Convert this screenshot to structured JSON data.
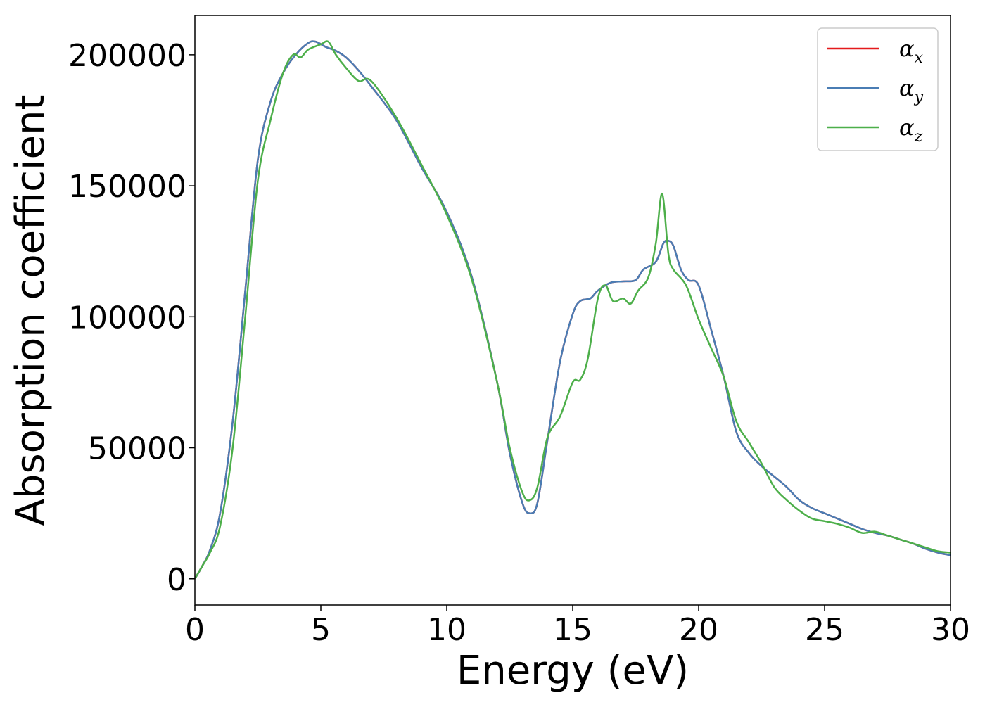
{
  "chart_data": {
    "type": "line",
    "title": "",
    "xlabel": "Energy (eV)",
    "ylabel": "Absorption coefficient",
    "xlim": [
      0,
      30
    ],
    "ylim": [
      -10000,
      215000
    ],
    "xticks": [
      0,
      5,
      10,
      15,
      20,
      25,
      30
    ],
    "xtick_labels": [
      "0",
      "5",
      "10",
      "15",
      "20",
      "25",
      "30"
    ],
    "yticks": [
      0,
      50000,
      100000,
      150000,
      200000
    ],
    "ytick_labels": [
      "0",
      "50000",
      "100000",
      "150000",
      "200000"
    ],
    "grid": false,
    "legend_position": "top-right",
    "series": [
      {
        "name": "α_x",
        "label_base": "α",
        "label_sub": "x",
        "color": "#e41a1c",
        "x": [
          0,
          0.3,
          0.6,
          1.0,
          1.5,
          2.0,
          2.5,
          3.0,
          3.5,
          4.0,
          4.5,
          4.8,
          5.2,
          5.6,
          6.0,
          6.5,
          7.0,
          8.0,
          9.0,
          10.0,
          11.0,
          12.0,
          12.5,
          13.0,
          13.3,
          13.6,
          14.0,
          14.5,
          15.0,
          15.3,
          15.7,
          16.0,
          16.5,
          17.0,
          17.5,
          17.8,
          18.3,
          18.6,
          18.8,
          19.0,
          19.3,
          19.6,
          20.0,
          20.5,
          21.0,
          21.5,
          22.0,
          22.5,
          23.0,
          23.5,
          24.0,
          24.5,
          25.0,
          25.5,
          26.0,
          26.5,
          27.0,
          27.5,
          28.0,
          28.5,
          29.0,
          29.5,
          30.0
        ],
        "values": [
          0,
          5000,
          11000,
          25000,
          60000,
          110000,
          160000,
          182000,
          193000,
          200000,
          204500,
          205000,
          203000,
          201500,
          199000,
          194000,
          188000,
          175000,
          157000,
          140000,
          115000,
          75000,
          48000,
          29000,
          25000,
          29000,
          53000,
          83000,
          101000,
          106000,
          107000,
          110000,
          113000,
          113500,
          114000,
          118000,
          121000,
          128000,
          129000,
          127000,
          118000,
          114000,
          112000,
          95000,
          77000,
          56000,
          48000,
          43000,
          39000,
          35000,
          30000,
          27000,
          25000,
          23000,
          21000,
          19000,
          17500,
          16500,
          15000,
          13500,
          11500,
          10000,
          9000
        ]
      },
      {
        "name": "α_y",
        "label_base": "α",
        "label_sub": "y",
        "color": "#4a7db4",
        "x": [
          0,
          0.3,
          0.6,
          1.0,
          1.5,
          2.0,
          2.5,
          3.0,
          3.5,
          4.0,
          4.5,
          4.8,
          5.2,
          5.6,
          6.0,
          6.5,
          7.0,
          8.0,
          9.0,
          10.0,
          11.0,
          12.0,
          12.5,
          13.0,
          13.3,
          13.6,
          14.0,
          14.5,
          15.0,
          15.3,
          15.7,
          16.0,
          16.5,
          17.0,
          17.5,
          17.8,
          18.3,
          18.6,
          18.8,
          19.0,
          19.3,
          19.6,
          20.0,
          20.5,
          21.0,
          21.5,
          22.0,
          22.5,
          23.0,
          23.5,
          24.0,
          24.5,
          25.0,
          25.5,
          26.0,
          26.5,
          27.0,
          27.5,
          28.0,
          28.5,
          29.0,
          29.5,
          30.0
        ],
        "values": [
          0,
          5000,
          11000,
          25000,
          60000,
          110000,
          160000,
          182000,
          193000,
          200000,
          204500,
          205000,
          203000,
          201500,
          199000,
          194000,
          188000,
          175000,
          157000,
          140000,
          115000,
          75000,
          48000,
          29000,
          25000,
          29000,
          53000,
          83000,
          101000,
          106000,
          107000,
          110000,
          113000,
          113500,
          114000,
          118000,
          121000,
          128000,
          129000,
          127000,
          118000,
          114000,
          112000,
          95000,
          77000,
          56000,
          48000,
          43000,
          39000,
          35000,
          30000,
          27000,
          25000,
          23000,
          21000,
          19000,
          17500,
          16500,
          15000,
          13500,
          11500,
          10000,
          9000
        ]
      },
      {
        "name": "α_z",
        "label_base": "α",
        "label_sub": "z",
        "color": "#4daf4a",
        "x": [
          0,
          0.3,
          0.6,
          1.0,
          1.5,
          2.0,
          2.5,
          3.0,
          3.5,
          3.9,
          4.2,
          4.5,
          5.0,
          5.3,
          5.6,
          6.0,
          6.5,
          7.0,
          8.0,
          9.0,
          10.0,
          11.0,
          12.0,
          12.5,
          13.0,
          13.3,
          13.6,
          14.0,
          14.5,
          15.0,
          15.3,
          15.6,
          16.0,
          16.3,
          16.6,
          17.0,
          17.3,
          17.6,
          18.0,
          18.3,
          18.55,
          18.8,
          19.0,
          19.5,
          20.0,
          20.5,
          21.0,
          21.5,
          22.0,
          22.5,
          23.0,
          23.5,
          24.0,
          24.5,
          25.0,
          25.5,
          26.0,
          26.5,
          27.0,
          27.5,
          28.0,
          28.5,
          29.0,
          29.5,
          30.0
        ],
        "values": [
          0,
          5000,
          10000,
          20000,
          50000,
          100000,
          152000,
          175000,
          193000,
          200000,
          199000,
          202000,
          204000,
          205000,
          200000,
          195000,
          190000,
          190000,
          176000,
          158000,
          139000,
          114000,
          75000,
          50000,
          33000,
          30000,
          35000,
          54000,
          62000,
          75000,
          76000,
          84000,
          107000,
          112000,
          106000,
          107000,
          105000,
          110000,
          115000,
          128000,
          147000,
          124000,
          118000,
          112000,
          99000,
          88000,
          77000,
          60000,
          52000,
          44000,
          35000,
          30000,
          26000,
          23000,
          22000,
          21000,
          19500,
          17500,
          18000,
          16500,
          15000,
          13500,
          12000,
          10500,
          10000
        ]
      }
    ]
  }
}
